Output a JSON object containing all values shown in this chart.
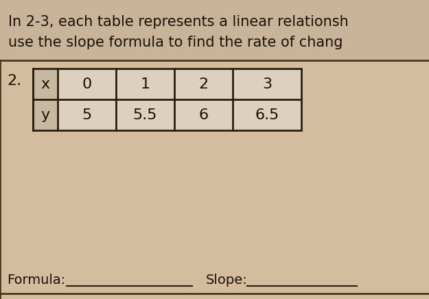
{
  "title_line1": "In 2-3, each table represents a linear relationsh",
  "title_line2": "use the slope formula to find the rate of chang",
  "problem_number": "2.",
  "table_headers": [
    "x",
    "0",
    "1",
    "2",
    "3"
  ],
  "table_row2": [
    "y",
    "5",
    "5.5",
    "6",
    "6.5"
  ],
  "formula_label": "Formula:",
  "slope_label": "Slope:",
  "bg_color": "#c9b49a",
  "content_bg": "#d4bc9f",
  "title_bg": "#c9b49a",
  "table_bg": "#ddd0be",
  "label_cell_bg": "#c8b8a2",
  "text_color": "#1a1205",
  "border_color": "#2a1f0e",
  "divider_color": "#4a3520",
  "title_fontsize": 15,
  "table_fontsize": 16,
  "label_fontsize": 14,
  "problem_fontsize": 16
}
